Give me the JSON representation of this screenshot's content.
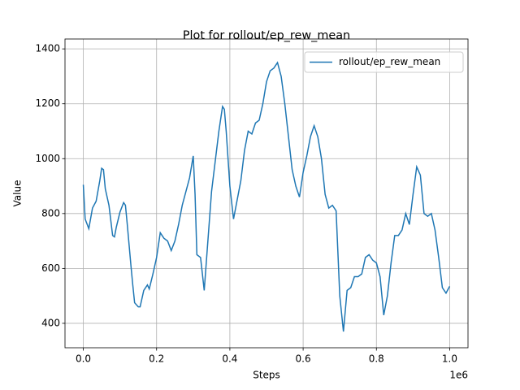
{
  "chart_data": {
    "type": "line",
    "title": "Plot for rollout/ep_rew_mean",
    "xlabel": "Steps",
    "ylabel": "Value",
    "x_offset_label": "1e6",
    "x": [
      0,
      5000,
      15000,
      25000,
      35000,
      45000,
      50000,
      55000,
      60000,
      70000,
      80000,
      85000,
      90000,
      100000,
      110000,
      115000,
      120000,
      130000,
      135000,
      140000,
      150000,
      155000,
      165000,
      175000,
      180000,
      190000,
      200000,
      210000,
      220000,
      230000,
      240000,
      250000,
      260000,
      270000,
      280000,
      290000,
      300000,
      305000,
      310000,
      320000,
      325000,
      330000,
      340000,
      350000,
      360000,
      370000,
      380000,
      385000,
      390000,
      400000,
      410000,
      420000,
      430000,
      440000,
      450000,
      460000,
      470000,
      480000,
      490000,
      500000,
      510000,
      520000,
      530000,
      540000,
      550000,
      560000,
      570000,
      580000,
      590000,
      600000,
      610000,
      620000,
      630000,
      640000,
      650000,
      660000,
      670000,
      680000,
      690000,
      700000,
      710000,
      720000,
      730000,
      740000,
      750000,
      760000,
      770000,
      780000,
      790000,
      800000,
      810000,
      820000,
      830000,
      840000,
      850000,
      860000,
      870000,
      880000,
      890000,
      900000,
      910000,
      920000,
      930000,
      940000,
      950000,
      960000,
      970000,
      980000,
      990000,
      1000000
    ],
    "series": [
      {
        "name": "rollout/ep_rew_mean",
        "color": "#1f77b4",
        "values": [
          905,
          780,
          745,
          820,
          845,
          920,
          965,
          960,
          890,
          830,
          720,
          715,
          750,
          805,
          840,
          830,
          760,
          610,
          540,
          475,
          460,
          460,
          520,
          540,
          525,
          580,
          640,
          730,
          710,
          700,
          665,
          700,
          760,
          830,
          880,
          930,
          1010,
          870,
          650,
          640,
          580,
          520,
          700,
          880,
          990,
          1100,
          1190,
          1180,
          1100,
          900,
          780,
          850,
          920,
          1030,
          1100,
          1090,
          1130,
          1140,
          1200,
          1280,
          1320,
          1330,
          1350,
          1300,
          1200,
          1080,
          960,
          900,
          860,
          950,
          1010,
          1080,
          1120,
          1080,
          1000,
          870,
          820,
          830,
          810,
          500,
          370,
          520,
          530,
          570,
          570,
          580,
          640,
          650,
          630,
          620,
          570,
          430,
          500,
          620,
          720,
          720,
          740,
          800,
          760,
          870,
          970,
          940,
          800,
          790,
          800,
          740,
          640,
          530,
          510,
          535
        ]
      }
    ],
    "xlim": [
      -50000,
      1050000
    ],
    "ylim": [
      311,
      1436
    ],
    "xticks": [
      {
        "value": 0,
        "label": "0.0"
      },
      {
        "value": 200000,
        "label": "0.2"
      },
      {
        "value": 400000,
        "label": "0.4"
      },
      {
        "value": 600000,
        "label": "0.6"
      },
      {
        "value": 800000,
        "label": "0.8"
      },
      {
        "value": 1000000,
        "label": "1.0"
      }
    ],
    "yticks": [
      400,
      600,
      800,
      1000,
      1200,
      1400
    ],
    "grid": true,
    "legend": "upper right"
  }
}
